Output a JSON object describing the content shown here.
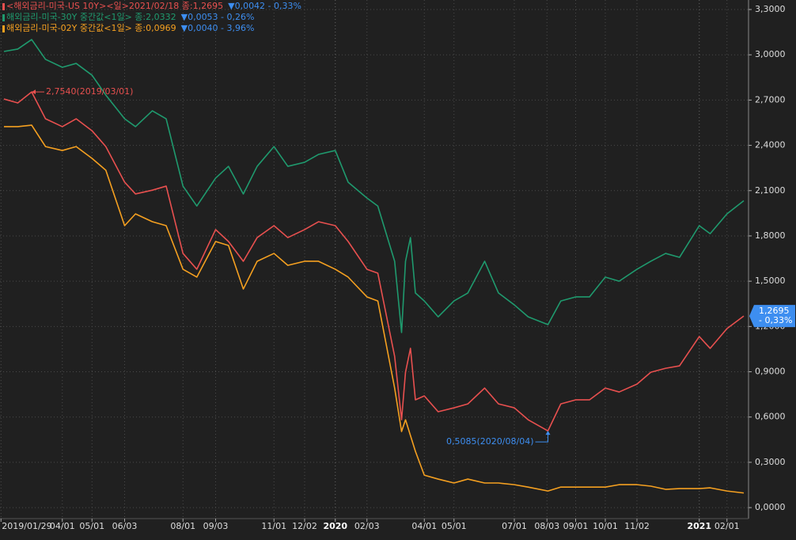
{
  "chart_data": {
    "type": "line",
    "x": [
      "2019/02/01",
      "2019/02/15",
      "2019/03/01",
      "2019/03/15",
      "2019/04/01",
      "2019/04/15",
      "2019/05/01",
      "2019/05/15",
      "2019/06/03",
      "2019/06/14",
      "2019/07/01",
      "2019/07/15",
      "2019/08/01",
      "2019/08/15",
      "2019/09/03",
      "2019/09/16",
      "2019/10/01",
      "2019/10/15",
      "2019/11/01",
      "2019/11/15",
      "2019/12/02",
      "2019/12/16",
      "2020/01/02",
      "2020/01/15",
      "2020/02/03",
      "2020/02/14",
      "2020/03/02",
      "2020/03/09",
      "2020/03/13",
      "2020/03/18",
      "2020/03/23",
      "2020/04/01",
      "2020/04/15",
      "2020/05/01",
      "2020/05/15",
      "2020/06/01",
      "2020/06/15",
      "2020/07/01",
      "2020/07/15",
      "2020/08/04",
      "2020/08/17",
      "2020/09/01",
      "2020/09/15",
      "2020/10/01",
      "2020/10/15",
      "2020/11/02",
      "2020/11/16",
      "2020/12/01",
      "2020/12/15",
      "2021/01/04",
      "2021/01/15",
      "2021/02/01",
      "2021/02/18"
    ],
    "series": [
      {
        "name": "<해외금리-미국-US 10Y><일>2021/02/18 종:1,2695",
        "change": "▼0,0042 - 0,33%",
        "color": "#e8504f",
        "values": [
          2.707,
          2.681,
          2.754,
          2.576,
          2.524,
          2.576,
          2.497,
          2.392,
          2.156,
          2.078,
          2.103,
          2.13,
          1.684,
          1.579,
          1.842,
          1.763,
          1.632,
          1.789,
          1.868,
          1.789,
          1.842,
          1.894,
          1.868,
          1.763,
          1.579,
          1.553,
          1.002,
          0.582,
          0.897,
          1.055,
          0.714,
          0.74,
          0.635,
          0.661,
          0.687,
          0.792,
          0.687,
          0.661,
          0.582,
          0.5085,
          0.687,
          0.714,
          0.714,
          0.792,
          0.766,
          0.818,
          0.897,
          0.923,
          0.939,
          1.133,
          1.055,
          1.186,
          1.2695
        ]
      },
      {
        "name": "해외금리-미국-30Y 중간값<1일> 종:2,0332",
        "change": "▼0,0053 - 0,26%",
        "color": "#1f9a6e",
        "values": [
          3.022,
          3.038,
          3.101,
          2.97,
          2.917,
          2.943,
          2.865,
          2.733,
          2.576,
          2.524,
          2.629,
          2.576,
          2.13,
          1.998,
          2.183,
          2.261,
          2.078,
          2.261,
          2.392,
          2.261,
          2.288,
          2.34,
          2.366,
          2.156,
          2.051,
          1.998,
          1.632,
          1.16,
          1.632,
          1.789,
          1.422,
          1.369,
          1.264,
          1.369,
          1.422,
          1.632,
          1.422,
          1.343,
          1.264,
          1.212,
          1.369,
          1.396,
          1.396,
          1.527,
          1.5,
          1.579,
          1.632,
          1.684,
          1.658,
          1.868,
          1.815,
          1.946,
          2.0332
        ]
      },
      {
        "name": "해외금리-미국-02Y 중간값<1일> 종:0,0969",
        "change": "▼0,0040 - 3,96%",
        "color": "#f5a020",
        "values": [
          2.524,
          2.524,
          2.534,
          2.392,
          2.366,
          2.392,
          2.314,
          2.235,
          1.868,
          1.946,
          1.894,
          1.868,
          1.579,
          1.527,
          1.763,
          1.737,
          1.448,
          1.632,
          1.684,
          1.605,
          1.632,
          1.632,
          1.579,
          1.527,
          1.396,
          1.369,
          0.792,
          0.504,
          0.582,
          0.477,
          0.373,
          0.215,
          0.189,
          0.163,
          0.189,
          0.163,
          0.163,
          0.152,
          0.136,
          0.11,
          0.136,
          0.136,
          0.136,
          0.136,
          0.152,
          0.152,
          0.142,
          0.121,
          0.126,
          0.126,
          0.131,
          0.11,
          0.0969
        ]
      }
    ],
    "change_color": "#3d8ef0",
    "xlim": [
      "2019/01/28",
      "2021/02/22"
    ],
    "xticks": [
      {
        "value": "2019/01/29",
        "label": "2019/01/29"
      },
      {
        "value": "2019/04/01",
        "label": "04/01"
      },
      {
        "value": "2019/05/01",
        "label": "05/01"
      },
      {
        "value": "2019/06/03",
        "label": "06/03"
      },
      {
        "value": "2019/08/01",
        "label": "08/01"
      },
      {
        "value": "2019/09/03",
        "label": "09/03"
      },
      {
        "value": "2019/11/01",
        "label": "11/01"
      },
      {
        "value": "2019/12/02",
        "label": "12/02"
      },
      {
        "value": "2020/01/02",
        "label": "2020"
      },
      {
        "value": "2020/02/03",
        "label": "02/03"
      },
      {
        "value": "2020/04/01",
        "label": "04/01"
      },
      {
        "value": "2020/05/01",
        "label": "05/01"
      },
      {
        "value": "2020/07/01",
        "label": "07/01"
      },
      {
        "value": "2020/08/03",
        "label": "08/03"
      },
      {
        "value": "2020/09/01",
        "label": "09/01"
      },
      {
        "value": "2020/10/01",
        "label": "10/01"
      },
      {
        "value": "2020/11/02",
        "label": "11/02"
      },
      {
        "value": "2021/01/04",
        "label": "2021"
      },
      {
        "value": "2021/02/01",
        "label": "02/01"
      }
    ],
    "ylim": [
      -0.073,
      3.363
    ],
    "yticks": [
      {
        "value": 0,
        "label": "0,0000"
      },
      {
        "value": 0.3,
        "label": "0,3000"
      },
      {
        "value": 0.6,
        "label": "0,6000"
      },
      {
        "value": 0.9,
        "label": "0,9000"
      },
      {
        "value": 1.2,
        "label": "1,2000"
      },
      {
        "value": 1.5,
        "label": "1,5000"
      },
      {
        "value": 1.8,
        "label": "1,8000"
      },
      {
        "value": 2.1,
        "label": "2,1000"
      },
      {
        "value": 2.4,
        "label": "2,4000"
      },
      {
        "value": 2.7,
        "label": "2,7000"
      },
      {
        "value": 3.0,
        "label": "3,0000"
      },
      {
        "value": 3.3,
        "label": "3,3000"
      }
    ],
    "grid": true,
    "annotations": [
      {
        "x": "2019/03/01",
        "value": 2.754,
        "label": "2,7540(2019/03/01)",
        "color": "#e8504f",
        "side": "right"
      },
      {
        "x": "2020/08/04",
        "value": 0.5085,
        "label": "0,5085(2020/08/04)",
        "color": "#3d8ef0",
        "side": "left"
      }
    ],
    "price_tag": {
      "value": 1.2695,
      "label": "1,2695",
      "change": "- 0,33%",
      "color": "#3d8ef0"
    }
  }
}
